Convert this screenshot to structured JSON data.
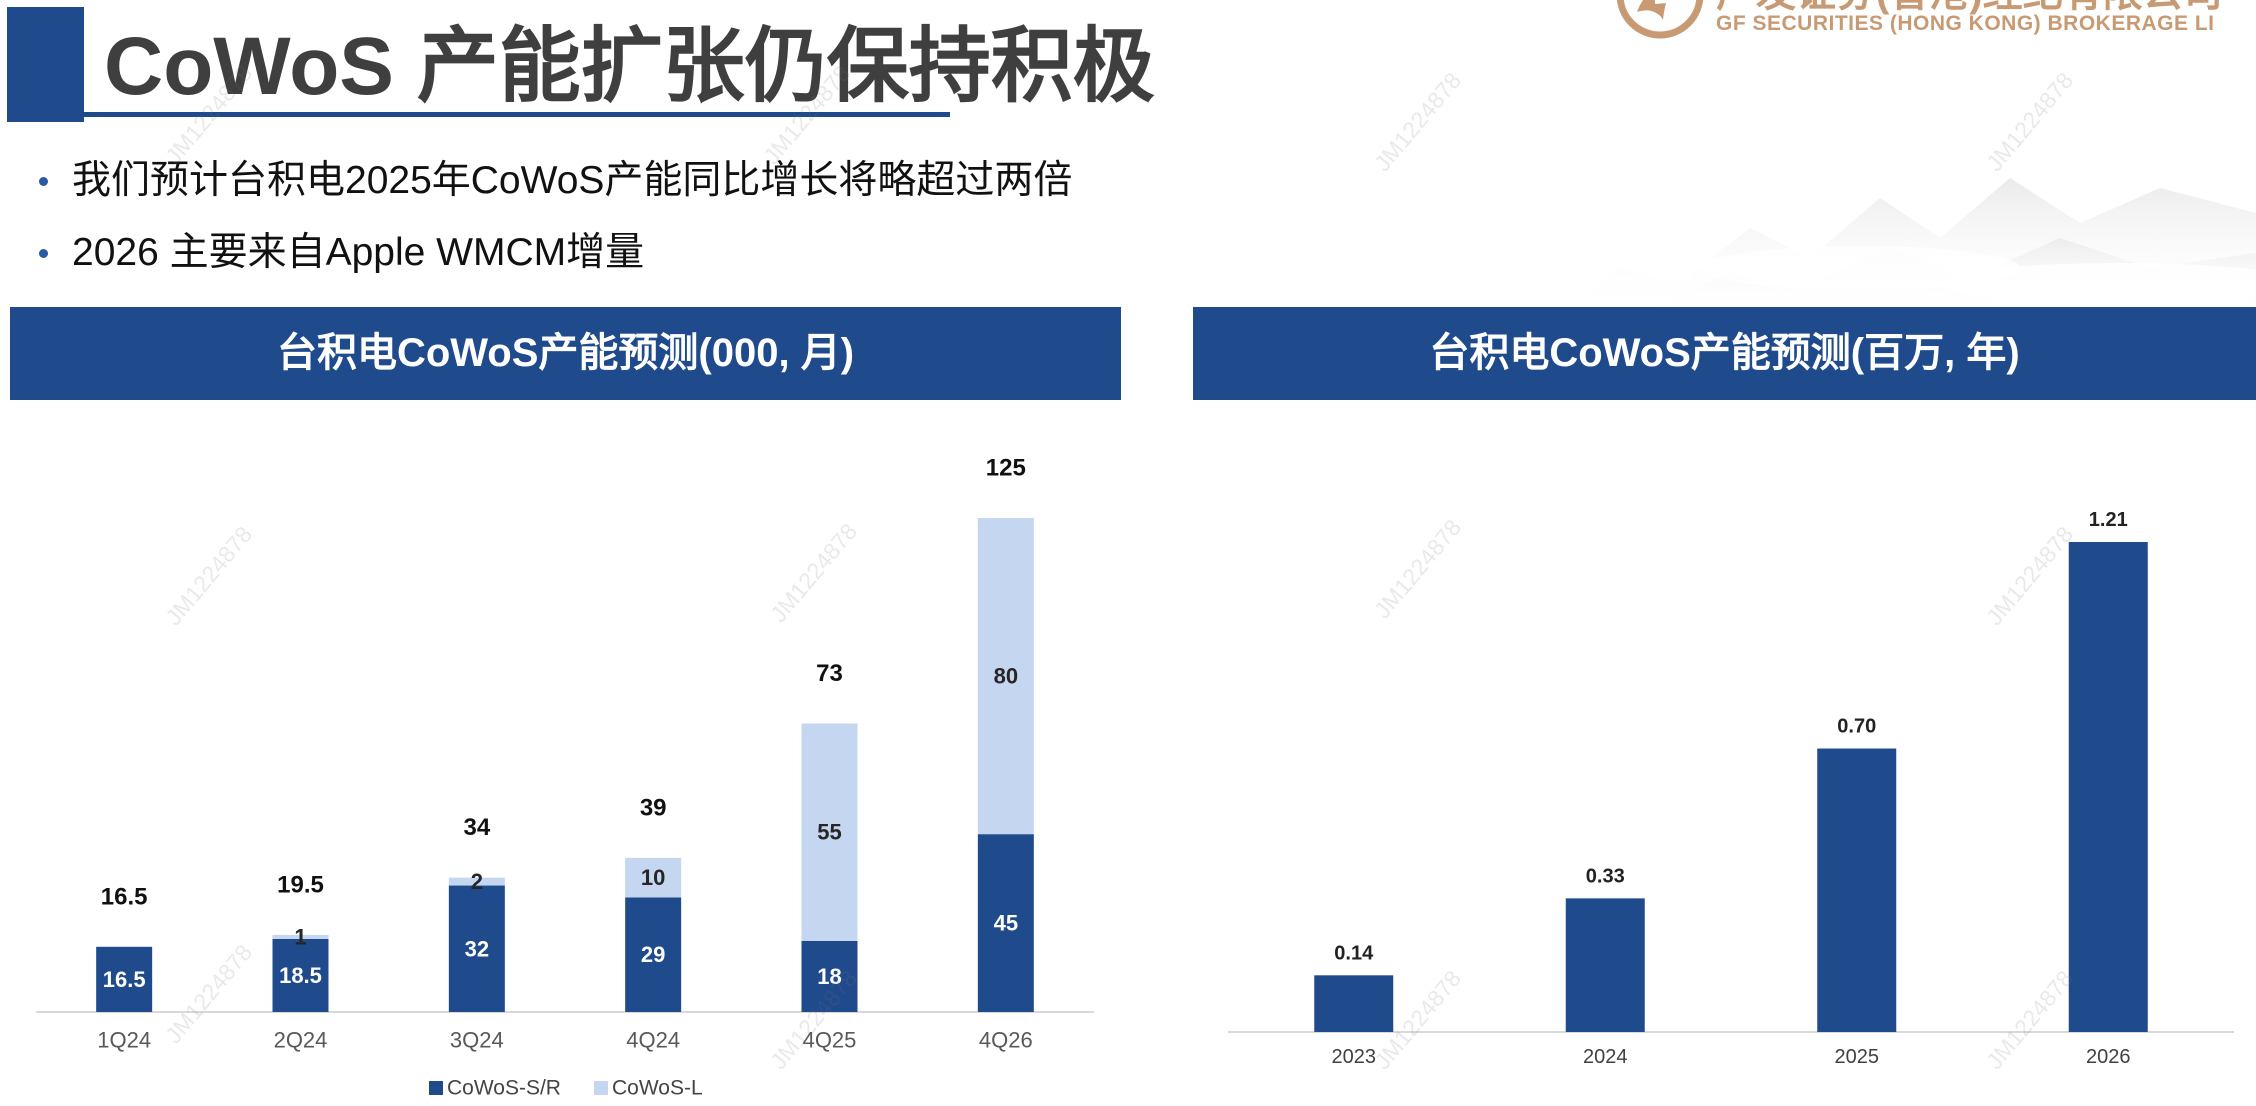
{
  "slide": {
    "title": "CoWoS 产能扩张仍保持积极",
    "bullets": [
      "我们预计台积电2025年CoWoS产能同比增长将略超过两倍",
      "2026 主要来自Apple WMCM增量"
    ]
  },
  "logo": {
    "name_cn": "广发证券(香港)经纪有限公司",
    "name_en": "GF SECURITIES (HONG KONG) BROKERAGE LI",
    "icon": "gf-logo-icon",
    "color": "#c89a74"
  },
  "watermark": "JM1224878",
  "colors": {
    "accent": "#1f4a8c",
    "bar_dark": "#1f4a8c",
    "bar_light": "#c5d6f1",
    "title_text": "#3f3f3f"
  },
  "chart_data": [
    {
      "type": "bar",
      "stacked": true,
      "title": "台积电CoWoS产能预测(000, 月)",
      "categories": [
        "1Q24",
        "2Q24",
        "3Q24",
        "4Q24",
        "4Q25",
        "4Q26"
      ],
      "series": [
        {
          "name": "CoWoS-S/R",
          "values": [
            16.5,
            18.5,
            32,
            29,
            18,
            45
          ],
          "labels": [
            "16.5",
            "18.5",
            "32",
            "29",
            "18",
            "45"
          ],
          "color": "#1f4a8c"
        },
        {
          "name": "CoWoS-L",
          "values": [
            0,
            1,
            2,
            10,
            55,
            80
          ],
          "labels": [
            "",
            "1",
            "2",
            "10",
            "55",
            "80"
          ],
          "color": "#c5d6f1"
        }
      ],
      "totals": [
        16.5,
        19.5,
        34,
        39,
        73,
        125
      ],
      "total_labels": [
        "16.5",
        "19.5",
        "34",
        "39",
        "73",
        "125"
      ],
      "legend": "bottom",
      "grid": false,
      "y_axis_visible": false
    },
    {
      "type": "bar",
      "title": "台积电CoWoS产能预测(百万, 年)",
      "categories": [
        "2023",
        "2024",
        "2025",
        "2026"
      ],
      "values": [
        0.14,
        0.33,
        0.7,
        1.21
      ],
      "labels": [
        "0.14",
        "0.33",
        "0.70",
        "1.21"
      ],
      "color": "#1f4a8c",
      "legend": "none",
      "grid": false,
      "y_axis_visible": false
    }
  ]
}
